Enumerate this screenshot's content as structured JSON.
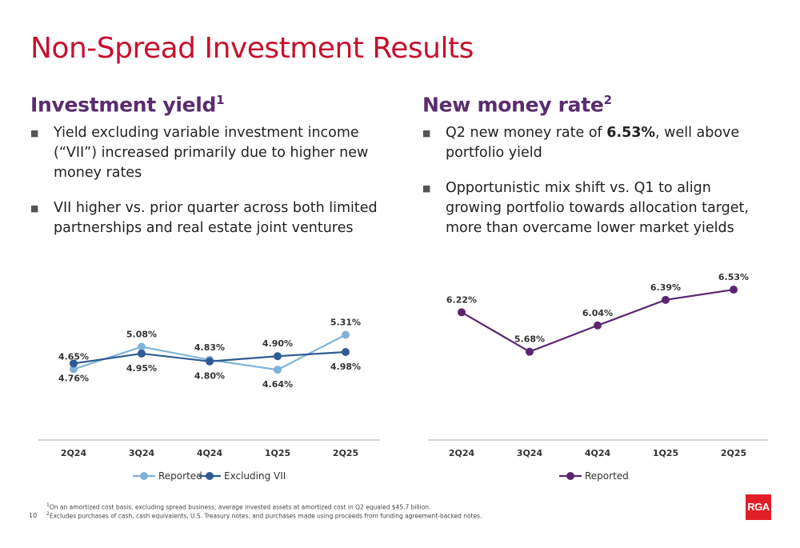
{
  "title": "Non-Spread Investment Results",
  "left": {
    "heading": "Investment yield",
    "heading_sup": "1",
    "bullets": [
      "Yield excluding variable investment income (“VII”) increased primarily due to higher new money rates",
      "VII higher vs. prior quarter across both limited partnerships and real estate joint ventures"
    ]
  },
  "right": {
    "heading": "New money rate",
    "heading_sup": "2",
    "bullet1_pre": "Q2 new money rate of ",
    "bullet1_bold": "6.53%",
    "bullet1_post": ", well above portfolio yield",
    "bullet2": "Opportunistic mix shift vs. Q1 to align growing portfolio towards allocation target, more than overcame lower market yields"
  },
  "chart_data": [
    {
      "type": "line",
      "categories": [
        "2Q24",
        "3Q24",
        "4Q24",
        "1Q25",
        "2Q25"
      ],
      "series": [
        {
          "name": "Reported",
          "color": "#7fb2d9",
          "values": [
            4.65,
            5.08,
            4.83,
            4.64,
            5.31
          ],
          "labels": [
            "4.65%",
            "5.08%",
            "4.83%",
            "4.64%",
            "5.31%"
          ]
        },
        {
          "name": "Excluding VII",
          "color": "#2e5b94",
          "values": [
            4.76,
            4.95,
            4.8,
            4.9,
            4.98
          ],
          "labels": [
            "4.76%",
            "4.95%",
            "4.80%",
            "4.90%",
            "4.98%"
          ]
        }
      ],
      "legend": "bottom",
      "grid": false
    },
    {
      "type": "line",
      "categories": [
        "2Q24",
        "3Q24",
        "4Q24",
        "1Q25",
        "2Q25"
      ],
      "series": [
        {
          "name": "Reported",
          "color": "#5b2670",
          "values": [
            6.22,
            5.68,
            6.04,
            6.39,
            6.53
          ],
          "labels": [
            "6.22%",
            "5.68%",
            "6.04%",
            "6.39%",
            "6.53%"
          ]
        }
      ],
      "legend": "bottom",
      "grid": false
    }
  ],
  "footnotes": [
    {
      "sup": "1",
      "text": "On an amortized cost basis, excluding spread business; average invested assets at amortized cost in Q2 equaled $45.7 billion."
    },
    {
      "sup": "2",
      "text": "Excludes purchases of cash, cash equivalents, U.S. Treasury notes, and purchases made using proceeds from funding agreement-backed notes."
    }
  ],
  "page_number": "10",
  "logo_text": "RGA"
}
